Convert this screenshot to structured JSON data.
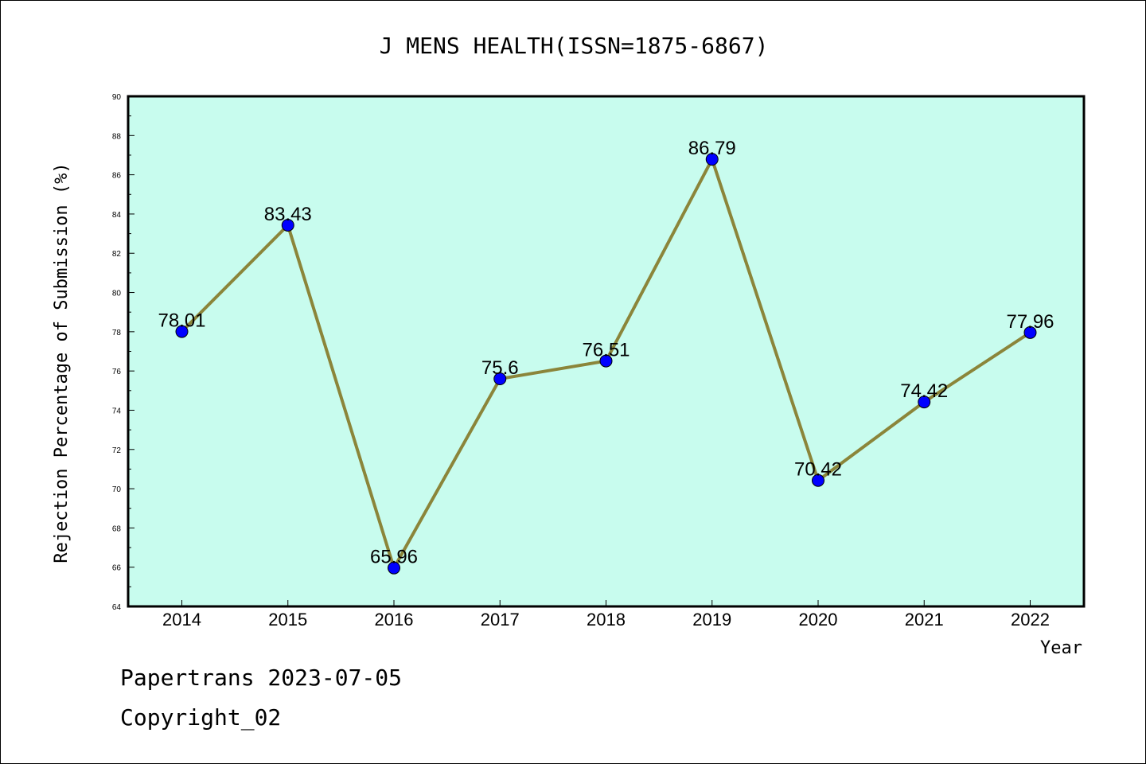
{
  "chart_data": {
    "type": "line",
    "title": "J MENS HEALTH(ISSN=1875-6867)",
    "xlabel": "Year",
    "ylabel": "Rejection Percentage of Submission (%)",
    "categories": [
      "2014",
      "2015",
      "2016",
      "2017",
      "2018",
      "2019",
      "2020",
      "2021",
      "2022"
    ],
    "values": [
      78.01,
      83.43,
      65.96,
      75.6,
      76.51,
      86.79,
      70.42,
      74.42,
      77.96
    ],
    "data_labels": [
      "78.01",
      "83.43",
      "65.96",
      "75.6",
      "76.51",
      "86.79",
      "70.42",
      "74.42",
      "77.96"
    ],
    "ylim": [
      64,
      90
    ],
    "yticks": [
      64,
      66,
      68,
      70,
      72,
      74,
      76,
      78,
      80,
      82,
      84,
      86,
      88,
      90
    ],
    "grid": false,
    "colors": {
      "plot_background": "#c8fcee",
      "line": "#8b853a",
      "marker": "#0000ff",
      "axis": "#000000"
    }
  },
  "footer": {
    "line1": "Papertrans 2023-07-05",
    "line2": "Copyright_02"
  }
}
